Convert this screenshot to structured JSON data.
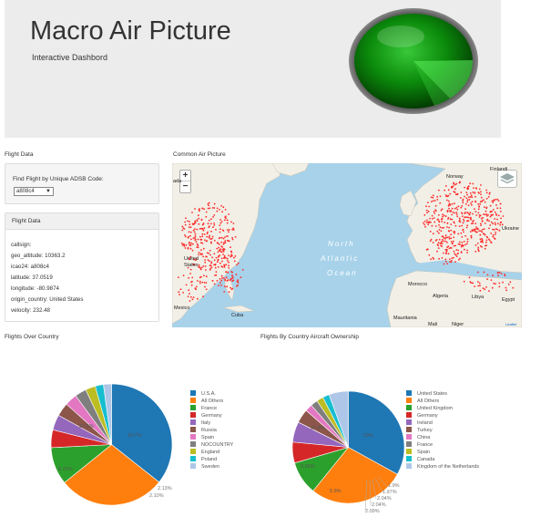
{
  "header": {
    "title": "Macro Air Picture",
    "subtitle": "Interactive Dashbord"
  },
  "left": {
    "section_label": "Flight Data",
    "find_title": "Find Flight by Unique ADSB Code:",
    "select_value": "a808c4",
    "panel_title": "Flight Data",
    "fields": [
      "callsign:",
      "geo_altitude: 10363.2",
      "icao24: a808c4",
      "latitude: 37.0519",
      "longitude: -80.9874",
      "origin_country: United States",
      "velocity: 232.48"
    ]
  },
  "map": {
    "section_label": "Common Air Picture",
    "zoom_in": "+",
    "zoom_out": "−",
    "ocean_line1": "North",
    "ocean_line2": "Atlantic",
    "ocean_line3": "Ocean",
    "places": {
      "norway": "Norway",
      "finland": "Finlandi",
      "ukraine": "Ukraine",
      "morocco": "Morocco",
      "algeria": "Algeria",
      "libya": "Libya",
      "egypt": "Egypt",
      "mauritania": "Mauritania",
      "mali": "Mali",
      "niger": "Niger",
      "cuba": "Cuba",
      "mexico": "Mexico",
      "ada": "ada",
      "united": "United",
      "states": "States"
    },
    "attribution": "Leaflet",
    "colors": {
      "water": "#a7d2ea",
      "land": "#f2efe6",
      "dot": "#ff2a2a"
    }
  },
  "charts": {
    "left_label": "Flights Over Country",
    "right_label": "Flights By Country Aircraft Ownership"
  },
  "chart_data": [
    {
      "type": "pie",
      "title": "Flights Over Country",
      "categories": [
        "U.S.A.",
        "All Others",
        "France",
        "Germany",
        "Italy",
        "Russia",
        "Spain",
        "NOCOUNTRY",
        "England",
        "Poland",
        "Sweden"
      ],
      "values": [
        34.7,
        27.8,
        9.72,
        4.6,
        4.0,
        3.5,
        3.2,
        3.0,
        2.6,
        2.13,
        2.1
      ],
      "labels_shown": [
        "34.7%",
        "27.8%",
        "9.72%",
        "2.13%",
        "2.10%"
      ],
      "colors": [
        "#1f77b4",
        "#ff7f0e",
        "#2ca02c",
        "#d62728",
        "#9467bd",
        "#8c564b",
        "#e377c2",
        "#7f7f7f",
        "#bcbd22",
        "#17becf",
        "#aec7e8"
      ],
      "legend": "right"
    },
    {
      "type": "pie",
      "title": "Flights By Country Aircraft Ownership",
      "categories": [
        "United States",
        "All Others",
        "United Kingdom",
        "Germany",
        "Ireland",
        "Turkey",
        "China",
        "France",
        "Spain",
        "Canada",
        "Kingdom of the Netherlands"
      ],
      "values": [
        33.0,
        27.8,
        9.66,
        6.0,
        5.9,
        4.0,
        2.09,
        2.04,
        1.97,
        1.9,
        5.6
      ],
      "labels_shown": [
        "33%",
        "27.8%",
        "9.66%",
        "5.9%",
        "1.9%",
        "1.97%",
        "2.04%",
        "2.04%",
        "2.09%"
      ],
      "colors": [
        "#1f77b4",
        "#ff7f0e",
        "#2ca02c",
        "#d62728",
        "#9467bd",
        "#8c564b",
        "#e377c2",
        "#7f7f7f",
        "#bcbd22",
        "#17becf",
        "#aec7e8"
      ],
      "legend": "right"
    }
  ]
}
